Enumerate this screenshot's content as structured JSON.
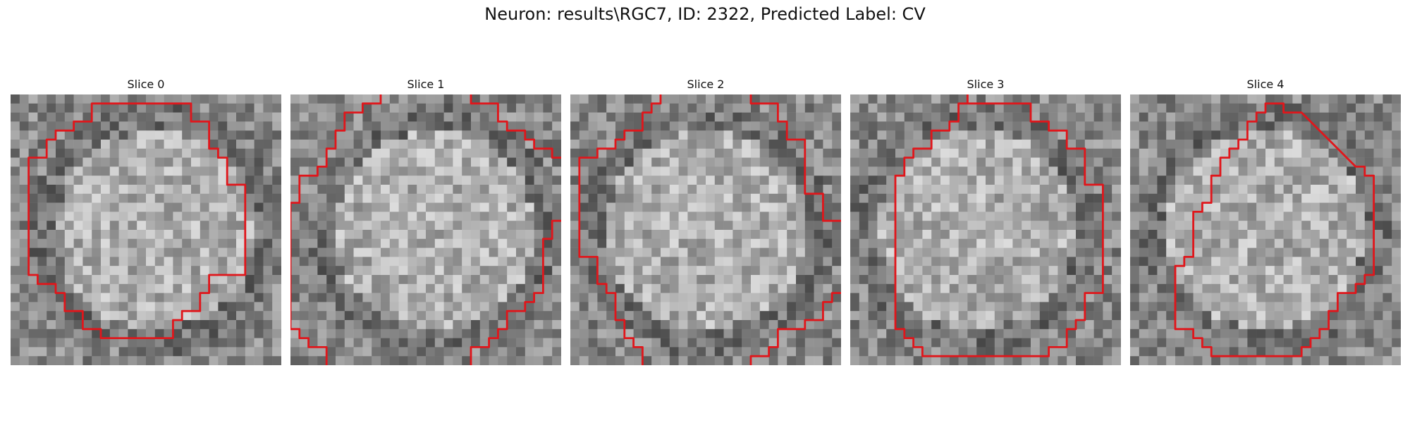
{
  "figure": {
    "title": "Neuron: results\\RGC7, ID: 2322, Predicted Label: CV",
    "contour_color": "#e0161b",
    "grid_size": 30
  },
  "slices": [
    {
      "title": "Slice 0",
      "seed": 11,
      "contour": [
        [
          9,
          1
        ],
        [
          20,
          1
        ],
        [
          20,
          3
        ],
        [
          22,
          3
        ],
        [
          22,
          6
        ],
        [
          23,
          6
        ],
        [
          23,
          7
        ],
        [
          24,
          7
        ],
        [
          24,
          10
        ],
        [
          26,
          10
        ],
        [
          26,
          20
        ],
        [
          22,
          20
        ],
        [
          22,
          22
        ],
        [
          21,
          22
        ],
        [
          21,
          24
        ],
        [
          19,
          24
        ],
        [
          19,
          25
        ],
        [
          18,
          25
        ],
        [
          18,
          27
        ],
        [
          10,
          27
        ],
        [
          10,
          26
        ],
        [
          8,
          26
        ],
        [
          8,
          24
        ],
        [
          6,
          24
        ],
        [
          6,
          22
        ],
        [
          5,
          22
        ],
        [
          5,
          21
        ],
        [
          3,
          21
        ],
        [
          3,
          20
        ],
        [
          2,
          20
        ],
        [
          2,
          7
        ],
        [
          4,
          7
        ],
        [
          4,
          5
        ],
        [
          5,
          5
        ],
        [
          5,
          4
        ],
        [
          7,
          4
        ],
        [
          7,
          3
        ],
        [
          9,
          3
        ]
      ],
      "open": false
    },
    {
      "title": "Slice 1",
      "seed": 23,
      "contour": [
        [
          10,
          0
        ],
        [
          10,
          1
        ],
        [
          8,
          1
        ],
        [
          8,
          2
        ],
        [
          6,
          2
        ],
        [
          6,
          4
        ],
        [
          5,
          4
        ],
        [
          5,
          6
        ],
        [
          4,
          6
        ],
        [
          4,
          8
        ],
        [
          3,
          8
        ],
        [
          3,
          9
        ],
        [
          1,
          9
        ],
        [
          1,
          12
        ],
        [
          0,
          12
        ],
        [
          0,
          26
        ],
        [
          1,
          26
        ],
        [
          1,
          27
        ],
        [
          2,
          27
        ],
        [
          2,
          28
        ],
        [
          4,
          28
        ],
        [
          4,
          30
        ]
      ],
      "contour2": [
        [
          20,
          0
        ],
        [
          20,
          1
        ],
        [
          23,
          1
        ],
        [
          23,
          3
        ],
        [
          24,
          3
        ],
        [
          24,
          4
        ],
        [
          26,
          4
        ],
        [
          26,
          5
        ],
        [
          27,
          5
        ],
        [
          27,
          6
        ],
        [
          29,
          6
        ],
        [
          29,
          7
        ],
        [
          30,
          7
        ]
      ],
      "contour3": [
        [
          30,
          14
        ],
        [
          29,
          14
        ],
        [
          29,
          16
        ],
        [
          28,
          16
        ],
        [
          28,
          22
        ],
        [
          27,
          22
        ],
        [
          27,
          23
        ],
        [
          26,
          23
        ],
        [
          26,
          24
        ],
        [
          24,
          24
        ],
        [
          24,
          26
        ],
        [
          23,
          26
        ],
        [
          23,
          27
        ],
        [
          22,
          27
        ],
        [
          22,
          28
        ],
        [
          20,
          28
        ],
        [
          20,
          30
        ]
      ],
      "open": true
    },
    {
      "title": "Slice 2",
      "seed": 37,
      "contour": [
        [
          10,
          0
        ],
        [
          10,
          1
        ],
        [
          9,
          1
        ],
        [
          9,
          2
        ],
        [
          8,
          2
        ],
        [
          8,
          4
        ],
        [
          6,
          4
        ],
        [
          6,
          5
        ],
        [
          5,
          5
        ],
        [
          5,
          6
        ],
        [
          3,
          6
        ],
        [
          3,
          7
        ],
        [
          1,
          7
        ],
        [
          1,
          18
        ],
        [
          3,
          18
        ],
        [
          3,
          21
        ],
        [
          4,
          21
        ],
        [
          4,
          22
        ],
        [
          5,
          22
        ],
        [
          5,
          25
        ],
        [
          6,
          25
        ],
        [
          6,
          27
        ],
        [
          7,
          27
        ],
        [
          7,
          28
        ],
        [
          8,
          28
        ],
        [
          8,
          30
        ]
      ],
      "contour2": [
        [
          20,
          0
        ],
        [
          20,
          1
        ],
        [
          23,
          1
        ],
        [
          23,
          3
        ],
        [
          24,
          3
        ],
        [
          24,
          5
        ],
        [
          26,
          5
        ],
        [
          26,
          10
        ],
        [
          26,
          10
        ],
        [
          26,
          11
        ],
        [
          28,
          11
        ],
        [
          28,
          14
        ],
        [
          30,
          14
        ]
      ],
      "contour3": [
        [
          30,
          22
        ],
        [
          29,
          22
        ],
        [
          29,
          23
        ],
        [
          28,
          23
        ],
        [
          28,
          25
        ],
        [
          26,
          25
        ],
        [
          26,
          26
        ],
        [
          23,
          26
        ],
        [
          23,
          28
        ],
        [
          22,
          28
        ],
        [
          22,
          29
        ],
        [
          20,
          29
        ],
        [
          20,
          30
        ]
      ],
      "open": true
    },
    {
      "title": "Slice 3",
      "seed": 51,
      "contour": [
        [
          13,
          0
        ],
        [
          13,
          1
        ],
        [
          20,
          1
        ],
        [
          20,
          3
        ],
        [
          22,
          3
        ],
        [
          22,
          4
        ],
        [
          24,
          4
        ],
        [
          24,
          6
        ],
        [
          26,
          6
        ],
        [
          26,
          10
        ],
        [
          28,
          10
        ],
        [
          28,
          22
        ],
        [
          26,
          22
        ],
        [
          26,
          25
        ],
        [
          25,
          25
        ],
        [
          25,
          26
        ],
        [
          24,
          26
        ],
        [
          24,
          28
        ],
        [
          22,
          28
        ],
        [
          22,
          29
        ],
        [
          8,
          29
        ],
        [
          8,
          28
        ],
        [
          7,
          28
        ],
        [
          7,
          27
        ],
        [
          6,
          27
        ],
        [
          6,
          26
        ],
        [
          5,
          26
        ],
        [
          5,
          9
        ],
        [
          6,
          9
        ],
        [
          6,
          7
        ],
        [
          7,
          7
        ],
        [
          7,
          6
        ],
        [
          9,
          6
        ],
        [
          9,
          4
        ],
        [
          11,
          4
        ],
        [
          11,
          3
        ],
        [
          12,
          3
        ],
        [
          12,
          1
        ],
        [
          13,
          1
        ]
      ],
      "open": false
    },
    {
      "title": "Slice 4",
      "seed": 67,
      "contour": [
        [
          15,
          2
        ],
        [
          15,
          1
        ],
        [
          17,
          1
        ],
        [
          17,
          2
        ],
        [
          19,
          2
        ],
        [
          21,
          4
        ],
        [
          22,
          5
        ],
        [
          23,
          6
        ],
        [
          24,
          7
        ],
        [
          25,
          8
        ],
        [
          26,
          8
        ],
        [
          26,
          9
        ],
        [
          27,
          9
        ],
        [
          27,
          20
        ],
        [
          26,
          20
        ],
        [
          26,
          21
        ],
        [
          25,
          21
        ],
        [
          25,
          22
        ],
        [
          23,
          22
        ],
        [
          23,
          24
        ],
        [
          22,
          24
        ],
        [
          22,
          26
        ],
        [
          21,
          26
        ],
        [
          21,
          27
        ],
        [
          20,
          27
        ],
        [
          20,
          28
        ],
        [
          19,
          28
        ],
        [
          19,
          29
        ],
        [
          9,
          29
        ],
        [
          9,
          28
        ],
        [
          8,
          28
        ],
        [
          8,
          27
        ],
        [
          7,
          27
        ],
        [
          7,
          26
        ],
        [
          5,
          26
        ],
        [
          5,
          19
        ],
        [
          6,
          19
        ],
        [
          6,
          18
        ],
        [
          7,
          18
        ],
        [
          7,
          13
        ],
        [
          8,
          13
        ],
        [
          8,
          12
        ],
        [
          9,
          12
        ],
        [
          9,
          9
        ],
        [
          10,
          9
        ],
        [
          10,
          7
        ],
        [
          11,
          7
        ],
        [
          11,
          6
        ],
        [
          12,
          6
        ],
        [
          12,
          5
        ],
        [
          13,
          5
        ],
        [
          13,
          3
        ],
        [
          14,
          3
        ],
        [
          14,
          2
        ],
        [
          15,
          2
        ]
      ],
      "open": false
    }
  ]
}
